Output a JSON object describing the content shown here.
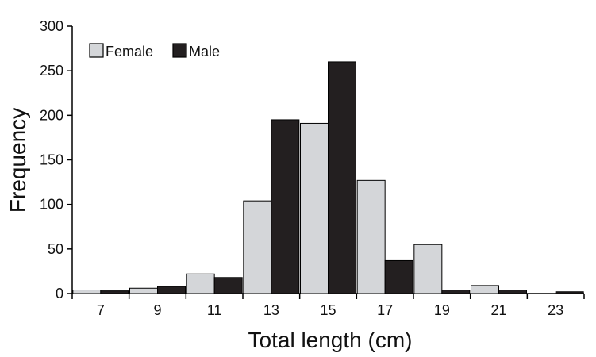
{
  "chart_data": {
    "type": "bar",
    "xlabel": "Total length (cm)",
    "ylabel": "Frequency",
    "categories": [
      "7",
      "9",
      "11",
      "13",
      "15",
      "17",
      "19",
      "21",
      "23"
    ],
    "series": [
      {
        "name": "Female",
        "values": [
          4,
          6,
          22,
          104,
          191,
          127,
          55,
          9,
          0
        ],
        "color": "#d4d6d9"
      },
      {
        "name": "Male",
        "values": [
          3,
          8,
          18,
          195,
          260,
          37,
          4,
          4,
          2
        ],
        "color": "#231f20"
      }
    ],
    "ylim": [
      0,
      300
    ],
    "yticks": [
      0,
      50,
      100,
      150,
      200,
      250,
      300
    ],
    "grid": false,
    "legend_position": "top-left"
  }
}
